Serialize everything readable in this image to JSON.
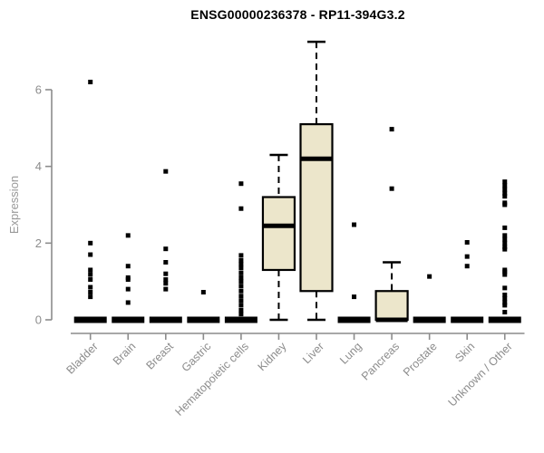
{
  "chart": {
    "colors": {
      "background": "#ffffff",
      "box_fill": "#ECE6CB",
      "box_stroke": "#000000",
      "median": "#000000",
      "whisker": "#000000",
      "outlier": "#000000",
      "axis": "#8c8c8c",
      "tick_label": "#8c8c8c",
      "title": "#000000"
    }
  },
  "chart_data": {
    "type": "boxplot",
    "title": "ENSG00000236378 - RP11-394G3.2",
    "xlabel": "",
    "ylabel": "Expression",
    "yticks": [
      0,
      2,
      4,
      6
    ],
    "ylim": [
      0,
      7.4
    ],
    "grid": false,
    "legend": false,
    "categories": [
      "Bladder",
      "Brain",
      "Breast",
      "Gastric",
      "Hematopoietic cells",
      "Kidney",
      "Liver",
      "Lung",
      "Pancreas",
      "Prostate",
      "Skin",
      "Unknown / Other"
    ],
    "series": [
      {
        "name": "Bladder",
        "q1": 0,
        "median": 0,
        "q3": 0,
        "whisker_low": 0,
        "whisker_high": 0,
        "outliers": [
          6.2,
          2.0,
          1.7,
          1.3,
          1.18,
          1.05,
          0.85,
          0.72,
          0.6
        ]
      },
      {
        "name": "Brain",
        "q1": 0,
        "median": 0,
        "q3": 0,
        "whisker_low": 0,
        "whisker_high": 0,
        "outliers": [
          2.2,
          1.4,
          1.1,
          1.05,
          0.8,
          0.45
        ]
      },
      {
        "name": "Breast",
        "q1": 0,
        "median": 0,
        "q3": 0,
        "whisker_low": 0,
        "whisker_high": 0,
        "outliers": [
          3.87,
          1.85,
          1.5,
          1.2,
          1.05,
          0.95,
          0.8
        ]
      },
      {
        "name": "Gastric",
        "q1": 0,
        "median": 0,
        "q3": 0,
        "whisker_low": 0,
        "whisker_high": 0,
        "outliers": [
          0.72
        ]
      },
      {
        "name": "Hematopoietic cells",
        "q1": 0,
        "median": 0,
        "q3": 0,
        "whisker_low": 0,
        "whisker_high": 0,
        "outliers": [
          3.55,
          2.9,
          1.68,
          1.55,
          1.45,
          1.35,
          1.22,
          1.1,
          1.0,
          0.88,
          0.75,
          0.62,
          0.5,
          0.38,
          0.25,
          0.15
        ]
      },
      {
        "name": "Kidney",
        "q1": 1.3,
        "median": 2.45,
        "q3": 3.2,
        "whisker_low": 0,
        "whisker_high": 4.3,
        "outliers": []
      },
      {
        "name": "Liver",
        "q1": 0.75,
        "median": 4.2,
        "q3": 5.1,
        "whisker_low": 0,
        "whisker_high": 7.25,
        "outliers": []
      },
      {
        "name": "Lung",
        "q1": 0,
        "median": 0,
        "q3": 0,
        "whisker_low": 0,
        "whisker_high": 0,
        "outliers": [
          2.48,
          0.6
        ]
      },
      {
        "name": "Pancreas",
        "q1": 0,
        "median": 0,
        "q3": 0.75,
        "whisker_low": 0,
        "whisker_high": 1.5,
        "outliers": [
          4.97,
          3.42
        ]
      },
      {
        "name": "Prostate",
        "q1": 0,
        "median": 0,
        "q3": 0,
        "whisker_low": 0,
        "whisker_high": 0,
        "outliers": [
          1.13
        ]
      },
      {
        "name": "Skin",
        "q1": 0,
        "median": 0,
        "q3": 0,
        "whisker_low": 0,
        "whisker_high": 0,
        "outliers": [
          2.02,
          1.65,
          1.4
        ]
      },
      {
        "name": "Unknown / Other",
        "q1": 0,
        "median": 0,
        "q3": 0,
        "whisker_low": 0,
        "whisker_high": 0,
        "outliers": [
          3.6,
          3.5,
          3.4,
          3.3,
          3.22,
          3.05,
          3.0,
          2.4,
          2.2,
          2.1,
          2.0,
          1.9,
          1.84,
          1.3,
          1.25,
          1.18,
          0.83,
          0.65,
          0.55,
          0.45,
          0.38,
          0.2
        ]
      }
    ]
  }
}
